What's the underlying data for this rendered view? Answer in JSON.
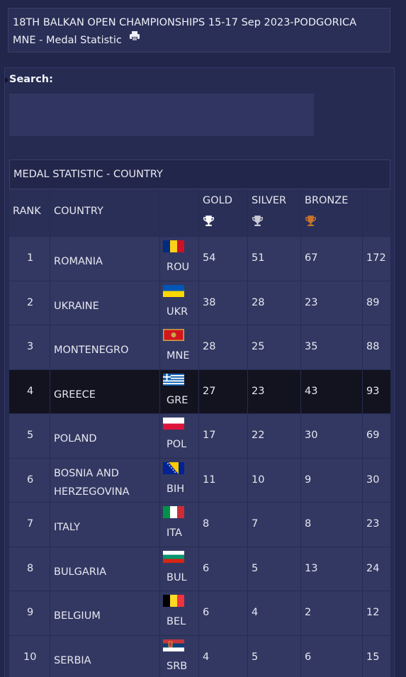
{
  "header": {
    "title_line1": "18TH BALKAN OPEN CHAMPIONSHIPS 15-17 Sep 2023-PODGORICA",
    "title_line2": "MNE - Medal Statistic"
  },
  "search": {
    "label": "Search:",
    "value": "",
    "placeholder": ""
  },
  "table": {
    "title": "MEDAL STATISTIC - COUNTRY",
    "columns": {
      "rank": "RANK",
      "country": "COUNTRY",
      "gold": "GOLD",
      "silver": "SILVER",
      "bronze": "BRONZE"
    },
    "rows": [
      {
        "rank": "1",
        "country": "ROMANIA",
        "code": "ROU",
        "gold": "54",
        "silver": "51",
        "bronze": "67",
        "total": "172"
      },
      {
        "rank": "2",
        "country": "UKRAINE",
        "code": "UKR",
        "gold": "38",
        "silver": "28",
        "bronze": "23",
        "total": "89"
      },
      {
        "rank": "3",
        "country": "MONTENEGRO",
        "code": "MNE",
        "gold": "28",
        "silver": "25",
        "bronze": "35",
        "total": "88"
      },
      {
        "rank": "4",
        "country": "GREECE",
        "code": "GRE",
        "gold": "27",
        "silver": "23",
        "bronze": "43",
        "total": "93"
      },
      {
        "rank": "5",
        "country": "POLAND",
        "code": "POL",
        "gold": "17",
        "silver": "22",
        "bronze": "30",
        "total": "69"
      },
      {
        "rank": "6",
        "country_line1": "BOSNIA AND",
        "country_line2": "HERZEGOVINA",
        "code": "BIH",
        "gold": "11",
        "silver": "10",
        "bronze": "9",
        "total": "30"
      },
      {
        "rank": "7",
        "country": "ITALY",
        "code": "ITA",
        "gold": "8",
        "silver": "7",
        "bronze": "8",
        "total": "23"
      },
      {
        "rank": "8",
        "country": "BULGARIA",
        "code": "BUL",
        "gold": "6",
        "silver": "5",
        "bronze": "13",
        "total": "24"
      },
      {
        "rank": "9",
        "country": "BELGIUM",
        "code": "BEL",
        "gold": "6",
        "silver": "4",
        "bronze": "2",
        "total": "12"
      },
      {
        "rank": "10",
        "country": "SERBIA",
        "code": "SRB",
        "gold": "4",
        "silver": "5",
        "bronze": "6",
        "total": "15"
      }
    ]
  },
  "colors": {
    "background": "#22264a",
    "row": "#333862",
    "highlight_row": "#12131f",
    "gold": "#ffffff",
    "silver": "#c9cad4",
    "bronze": "#c8732c"
  },
  "icons": {
    "print": "printer-icon",
    "gold": "trophy-icon",
    "silver": "trophy-icon",
    "bronze": "trophy-icon"
  }
}
